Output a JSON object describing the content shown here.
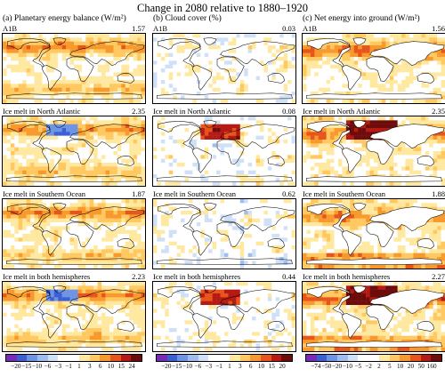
{
  "title": "Change in 2080 relative to 1880–1920",
  "columns": [
    {
      "heading": "(a) Planetary energy balance (W/m²)",
      "palette": "warm",
      "panels": [
        {
          "scenario": "A1B",
          "global_value": "1.57"
        },
        {
          "scenario": "Ice melt in North Atlantic",
          "global_value": "2.35"
        },
        {
          "scenario": "Ice melt in Southern Ocean",
          "global_value": "1.87"
        },
        {
          "scenario": "Ice melt in both hemispheres",
          "global_value": "2.23"
        }
      ],
      "colorbar": {
        "ticks": [
          "−20",
          "−15",
          "−10",
          "−6",
          "−3",
          "−1",
          "1",
          "3",
          "6",
          "10",
          "15",
          "24"
        ],
        "colors": [
          "#7a2ab8",
          "#3d5fd6",
          "#6e94e6",
          "#9fbdf0",
          "#cfe0f7",
          "#ffffff",
          "#ffffff",
          "#ffe8a0",
          "#ffc860",
          "#f8992d",
          "#e7541c",
          "#b51a14",
          "#6e0b0b"
        ]
      }
    },
    {
      "heading": "(b) Cloud cover (%)",
      "palette": "cloud",
      "panels": [
        {
          "scenario": "A1B",
          "global_value": "0.03"
        },
        {
          "scenario": "Ice melt in North Atlantic",
          "global_value": "0.08"
        },
        {
          "scenario": "Ice melt in Southern Ocean",
          "global_value": "0.62"
        },
        {
          "scenario": "Ice melt in both hemispheres",
          "global_value": "0.44"
        }
      ],
      "colorbar": {
        "ticks": [
          "−20",
          "−15",
          "−10",
          "−6",
          "−3",
          "−1",
          "1",
          "3",
          "6",
          "10",
          "15",
          "20"
        ],
        "colors": [
          "#7a2ab8",
          "#3d5fd6",
          "#6e94e6",
          "#9fbdf0",
          "#cfe0f7",
          "#ffffff",
          "#ffffff",
          "#ffe8a0",
          "#ffc860",
          "#f8992d",
          "#e7541c",
          "#b51a14",
          "#6e0b0b"
        ]
      }
    },
    {
      "heading": "(c) Net energy into ground (W/m²)",
      "palette": "ground",
      "panels": [
        {
          "scenario": "A1B",
          "global_value": "1.56"
        },
        {
          "scenario": "Ice melt in North Atlantic",
          "global_value": "2.35"
        },
        {
          "scenario": "Ice melt in Southern Ocean",
          "global_value": "1.88"
        },
        {
          "scenario": "Ice melt in both hemispheres",
          "global_value": "2.27"
        }
      ],
      "colorbar": {
        "ticks": [
          "−74",
          "−50",
          "−20",
          "−10",
          "−5",
          "−2",
          "2",
          "5",
          "10",
          "20",
          "50",
          "160"
        ],
        "colors": [
          "#7a2ab8",
          "#3d5fd6",
          "#6e94e6",
          "#9fbdf0",
          "#cfe0f7",
          "#ffffff",
          "#ffffff",
          "#ffe8a0",
          "#ffc860",
          "#f8992d",
          "#e7541c",
          "#b51a14",
          "#6e0b0b"
        ]
      }
    }
  ],
  "colors": {
    "land_outline": "#000000",
    "frame": "#000000"
  }
}
